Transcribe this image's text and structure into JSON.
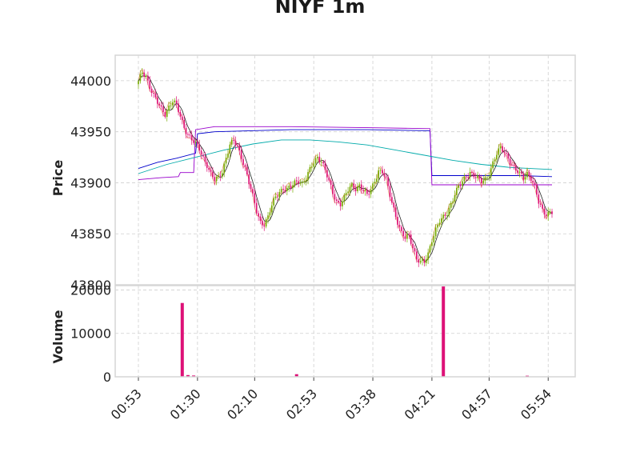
{
  "chart_data": {
    "type": "candlestick",
    "title": "NIYF 1m",
    "x_tick_labels": [
      "00:53",
      "01:30",
      "02:10",
      "02:53",
      "03:38",
      "04:21",
      "04:57",
      "05:54"
    ],
    "price_panel": {
      "ylabel": "Price",
      "ylim": [
        43800,
        44025
      ],
      "yticks": [
        43800,
        43850,
        43900,
        43950,
        44000
      ],
      "close_path": [
        [
          0,
          43998
        ],
        [
          2,
          44008
        ],
        [
          4,
          44005
        ],
        [
          6,
          43995
        ],
        [
          8,
          43985
        ],
        [
          10,
          43978
        ],
        [
          12,
          43972
        ],
        [
          14,
          43968
        ],
        [
          16,
          43975
        ],
        [
          18,
          43980
        ],
        [
          20,
          43975
        ],
        [
          22,
          43965
        ],
        [
          24,
          43955
        ],
        [
          26,
          43948
        ],
        [
          28,
          43942
        ],
        [
          30,
          43937
        ],
        [
          32,
          43933
        ],
        [
          34,
          43925
        ],
        [
          36,
          43918
        ],
        [
          38,
          43908
        ],
        [
          40,
          43902
        ],
        [
          42,
          43905
        ],
        [
          44,
          43912
        ],
        [
          46,
          43925
        ],
        [
          48,
          43937
        ],
        [
          50,
          43940
        ],
        [
          52,
          43935
        ],
        [
          54,
          43926
        ],
        [
          56,
          43915
        ],
        [
          58,
          43900
        ],
        [
          60,
          43886
        ],
        [
          62,
          43872
        ],
        [
          64,
          43862
        ],
        [
          66,
          43860
        ],
        [
          68,
          43866
        ],
        [
          70,
          43877
        ],
        [
          72,
          43886
        ],
        [
          74,
          43892
        ],
        [
          76,
          43895
        ],
        [
          78,
          43893
        ],
        [
          80,
          43895
        ],
        [
          82,
          43900
        ],
        [
          84,
          43903
        ],
        [
          86,
          43900
        ],
        [
          88,
          43904
        ],
        [
          90,
          43912
        ],
        [
          92,
          43920
        ],
        [
          94,
          43926
        ],
        [
          96,
          43922
        ],
        [
          98,
          43912
        ],
        [
          100,
          43900
        ],
        [
          102,
          43890
        ],
        [
          104,
          43882
        ],
        [
          106,
          43880
        ],
        [
          108,
          43885
        ],
        [
          110,
          43892
        ],
        [
          112,
          43897
        ],
        [
          114,
          43895
        ],
        [
          116,
          43898
        ],
        [
          118,
          43892
        ],
        [
          120,
          43887
        ],
        [
          122,
          43893
        ],
        [
          124,
          43903
        ],
        [
          126,
          43912
        ],
        [
          128,
          43910
        ],
        [
          130,
          43902
        ],
        [
          132,
          43888
        ],
        [
          134,
          43875
        ],
        [
          136,
          43862
        ],
        [
          138,
          43850
        ],
        [
          140,
          43845
        ],
        [
          142,
          43848
        ],
        [
          144,
          43838
        ],
        [
          146,
          43826
        ],
        [
          148,
          43822
        ],
        [
          150,
          43821
        ],
        [
          152,
          43830
        ],
        [
          154,
          43845
        ],
        [
          156,
          43855
        ],
        [
          158,
          43862
        ],
        [
          160,
          43865
        ],
        [
          162,
          43870
        ],
        [
          164,
          43880
        ],
        [
          166,
          43890
        ],
        [
          168,
          43896
        ],
        [
          170,
          43900
        ],
        [
          172,
          43906
        ],
        [
          174,
          43911
        ],
        [
          176,
          43908
        ],
        [
          178,
          43904
        ],
        [
          180,
          43900
        ],
        [
          182,
          43903
        ],
        [
          184,
          43910
        ],
        [
          186,
          43920
        ],
        [
          188,
          43928
        ],
        [
          190,
          43933
        ],
        [
          192,
          43930
        ],
        [
          194,
          43925
        ],
        [
          196,
          43918
        ],
        [
          198,
          43912
        ],
        [
          200,
          43908
        ],
        [
          202,
          43905
        ],
        [
          204,
          43910
        ],
        [
          206,
          43905
        ],
        [
          208,
          43895
        ],
        [
          210,
          43880
        ],
        [
          212,
          43873
        ],
        [
          214,
          43870
        ],
        [
          216,
          43872
        ]
      ],
      "overlays": [
        {
          "color": "#0000cc",
          "points": [
            [
              0,
              43914
            ],
            [
              10,
              43920
            ],
            [
              20,
              43924
            ],
            [
              30,
              43929
            ],
            [
              31,
              43948
            ],
            [
              40,
              43950
            ],
            [
              80,
              43952
            ],
            [
              120,
              43952
            ],
            [
              153,
              43951
            ],
            [
              154,
              43907
            ],
            [
              200,
              43907
            ],
            [
              217,
              43906
            ]
          ]
        },
        {
          "color": "#9900cc",
          "points": [
            [
              0,
              43903
            ],
            [
              12,
              43905
            ],
            [
              21,
              43906
            ],
            [
              22,
              43910
            ],
            [
              29,
              43910
            ],
            [
              30,
              43952
            ],
            [
              40,
              43955
            ],
            [
              80,
              43955
            ],
            [
              120,
              43954
            ],
            [
              153,
              43953
            ],
            [
              154,
              43898
            ],
            [
              200,
              43898
            ],
            [
              217,
              43898
            ]
          ]
        },
        {
          "color": "#00aaaa",
          "points": [
            [
              0,
              43909
            ],
            [
              15,
              43918
            ],
            [
              30,
              43925
            ],
            [
              45,
              43932
            ],
            [
              60,
              43938
            ],
            [
              75,
              43942
            ],
            [
              90,
              43942
            ],
            [
              105,
              43940
            ],
            [
              120,
              43937
            ],
            [
              135,
              43932
            ],
            [
              150,
              43927
            ],
            [
              165,
              43922
            ],
            [
              180,
              43918
            ],
            [
              195,
              43915
            ],
            [
              217,
              43913
            ]
          ]
        }
      ]
    },
    "volume_panel": {
      "ylabel": "Volume",
      "ylim": [
        0,
        21000
      ],
      "yticks": [
        0,
        10000,
        20000
      ],
      "bars": [
        {
          "index": 23,
          "value": 17000
        },
        {
          "index": 26,
          "value": 400
        },
        {
          "index": 29,
          "value": 300
        },
        {
          "index": 83,
          "value": 600
        },
        {
          "index": 160,
          "value": 20800
        },
        {
          "index": 204,
          "value": 250
        }
      ]
    },
    "colors": {
      "up": "#77aa00",
      "down": "#dd1177",
      "grid": "#cfcfcf",
      "frame": "#d6d6d6"
    }
  }
}
